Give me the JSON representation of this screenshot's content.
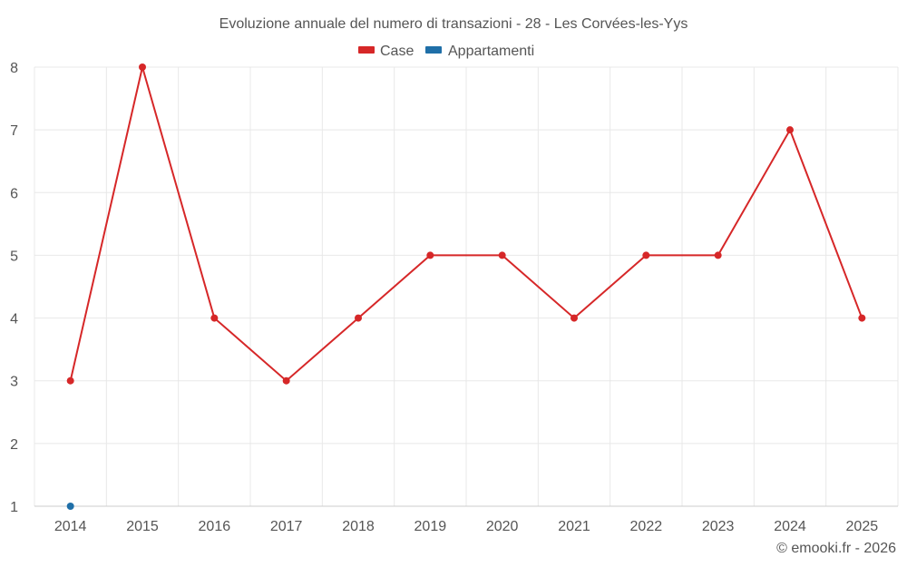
{
  "chart_data": {
    "type": "line",
    "title": "Evoluzione annuale del numero di transazioni - 28 - Les Corvées-les-Yys",
    "categories": [
      "2014",
      "2015",
      "2016",
      "2017",
      "2018",
      "2019",
      "2020",
      "2021",
      "2022",
      "2023",
      "2024",
      "2025"
    ],
    "series": [
      {
        "name": "Case",
        "color": "#d62728",
        "values": [
          3,
          8,
          4,
          3,
          4,
          5,
          5,
          4,
          5,
          5,
          7,
          4
        ]
      },
      {
        "name": "Appartamenti",
        "color": "#1f6fa8",
        "values": [
          1,
          null,
          null,
          null,
          null,
          null,
          null,
          null,
          null,
          null,
          null,
          null
        ]
      }
    ],
    "ylim": [
      1,
      8
    ],
    "yticks": [
      1,
      2,
      3,
      4,
      5,
      6,
      7,
      8
    ],
    "xlabel": "",
    "ylabel": "",
    "grid": true,
    "legend_position": "top-center"
  },
  "credit": "© emooki.fr - 2026"
}
